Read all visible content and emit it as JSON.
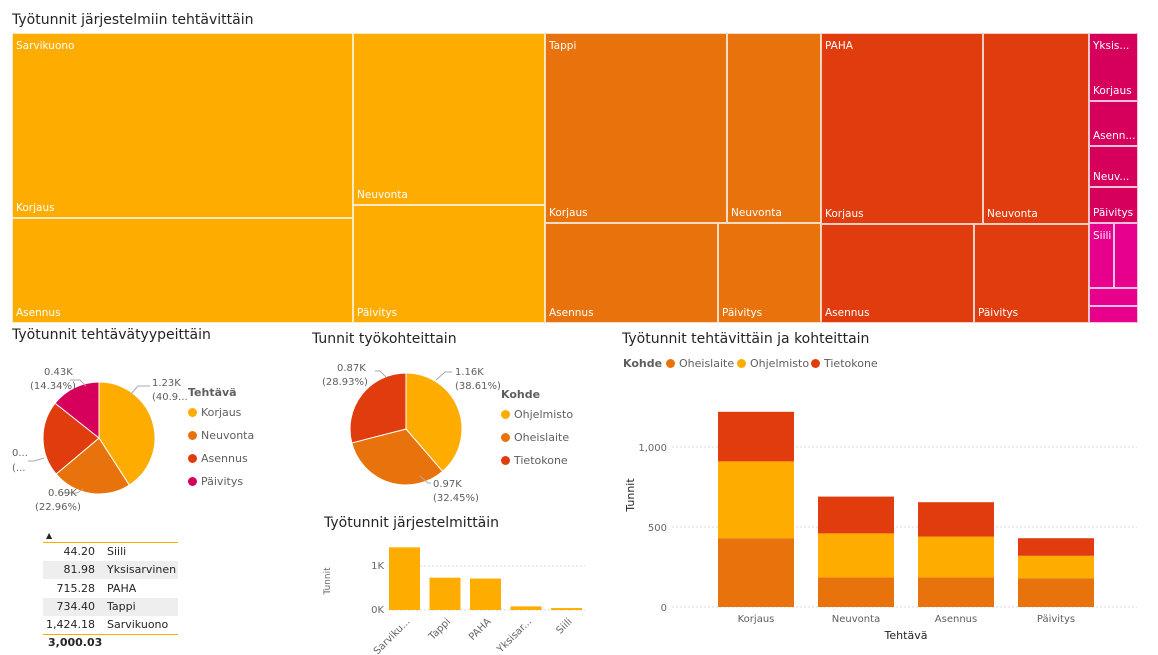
{
  "colors": {
    "yellow": "#FEAC00",
    "orange": "#E8730C",
    "red": "#E13C0E",
    "crimson": "#D6005C",
    "magenta": "#E6008B",
    "axis_gray": "#666666",
    "grid_gray": "#d8d8d8"
  },
  "treemap": {
    "title": "Työtunnit järjestelmiin tehtävittäin",
    "groups": [
      {
        "name": "Sarvikuono",
        "tasks": [
          "Korjaus",
          "Neuvonta",
          "Asennus",
          "Päivitys"
        ]
      },
      {
        "name": "Tappi",
        "tasks": [
          "Korjaus",
          "Neuvonta",
          "Asennus",
          "Päivitys"
        ]
      },
      {
        "name": "PAHA",
        "tasks": [
          "Korjaus",
          "Neuvonta",
          "Asennus",
          "Päivitys"
        ]
      },
      {
        "name": "Yksis...",
        "tasks": [
          "Korjaus",
          "Asenn...",
          "Neuv...",
          "Päivitys"
        ]
      },
      {
        "name": "Siili",
        "tasks": []
      }
    ]
  },
  "pie_tasks": {
    "title": "Työtunnit tehtävätyypeittäin",
    "legend_title": "Tehtävä",
    "legend": [
      "Korjaus",
      "Neuvonta",
      "Asennus",
      "Päivitys"
    ],
    "labels": {
      "korjaus_value": "1.23K",
      "korjaus_pct": "(40.9...",
      "neuvonta_value": "0.69K",
      "neuvonta_pct": "(22.96%)",
      "asennus_value": "0...",
      "asennus_pct": "(...",
      "paivitys_value": "0.43K",
      "paivitys_pct": "(14.34%)"
    }
  },
  "pie_targets": {
    "title": "Tunnit työkohteittain",
    "legend_title": "Kohde",
    "legend": [
      "Ohjelmisto",
      "Oheislaite",
      "Tietokone"
    ],
    "labels": {
      "ohjelmisto_value": "1.16K",
      "ohjelmisto_pct": "(38.61%)",
      "oheislaite_value": "0.97K",
      "oheislaite_pct": "(32.45%)",
      "tietokone_value": "0.87K",
      "tietokone_pct": "(28.93%)"
    }
  },
  "table": {
    "rows": [
      {
        "value": "44.20",
        "name": "Siili"
      },
      {
        "value": "81.98",
        "name": "Yksisarvinen"
      },
      {
        "value": "715.28",
        "name": "PAHA"
      },
      {
        "value": "734.40",
        "name": "Tappi"
      },
      {
        "value": "1,424.18",
        "name": "Sarvikuono"
      }
    ],
    "total": "3,000.03"
  },
  "bar_systems": {
    "title": "Työtunnit järjestelmittäin",
    "ylabel": "Tunnit",
    "ytick_labels": [
      "0K",
      "1K"
    ]
  },
  "stacked": {
    "title": "Työtunnit tehtävittäin ja kohteittain",
    "legend_title": "Kohde",
    "legend": [
      "Oheislaite",
      "Ohjelmisto",
      "Tietokone"
    ],
    "xlabel": "Tehtävä",
    "ylabel": "Tunnit",
    "ytick_labels": [
      "0",
      "500",
      "1,000"
    ]
  },
  "chart_data": [
    {
      "type": "treemap",
      "title": "Työtunnit järjestelmiin tehtävittäin",
      "groups": [
        {
          "name": "Sarvikuono",
          "value": 1424.18
        },
        {
          "name": "Tappi",
          "value": 734.4
        },
        {
          "name": "PAHA",
          "value": 715.28
        },
        {
          "name": "Yksisarvinen",
          "value": 81.98
        },
        {
          "name": "Siili",
          "value": 44.2
        }
      ]
    },
    {
      "type": "pie",
      "title": "Työtunnit tehtävätyypeittäin",
      "legend_title": "Tehtävä",
      "categories": [
        "Korjaus",
        "Neuvonta",
        "Asennus",
        "Päivitys"
      ],
      "values": [
        1.227,
        0.689,
        0.654,
        0.43
      ],
      "percent": [
        40.9,
        22.96,
        21.8,
        14.34
      ]
    },
    {
      "type": "pie",
      "title": "Tunnit työkohteittain",
      "legend_title": "Kohde",
      "categories": [
        "Ohjelmisto",
        "Oheislaite",
        "Tietokone"
      ],
      "values": [
        1.16,
        0.97,
        0.87
      ],
      "percent": [
        38.61,
        32.45,
        28.93
      ]
    },
    {
      "type": "bar",
      "title": "Työtunnit järjestelmittäin",
      "categories": [
        "Sarviku...",
        "Tappi",
        "PAHA",
        "Yksisar...",
        "Siili"
      ],
      "values": [
        1.42418,
        0.7344,
        0.71528,
        0.08198,
        0.0442
      ],
      "ylabel": "Tunnit",
      "ylim": [
        0,
        1.5
      ]
    },
    {
      "type": "bar",
      "stacked": true,
      "title": "Työtunnit tehtävittäin ja kohteittain",
      "categories": [
        "Korjaus",
        "Neuvonta",
        "Asennus",
        "Päivitys"
      ],
      "series": [
        {
          "name": "Oheislaite",
          "values": [
            430,
            185,
            185,
            180
          ]
        },
        {
          "name": "Ohjelmisto",
          "values": [
            480,
            275,
            255,
            140
          ]
        },
        {
          "name": "Tietokone",
          "values": [
            310,
            230,
            215,
            110
          ]
        }
      ],
      "xlabel": "Tehtävä",
      "ylabel": "Tunnit",
      "ylim": [
        0,
        1300
      ],
      "yticks": [
        0,
        500,
        1000
      ],
      "legend_position": "top-left"
    }
  ]
}
